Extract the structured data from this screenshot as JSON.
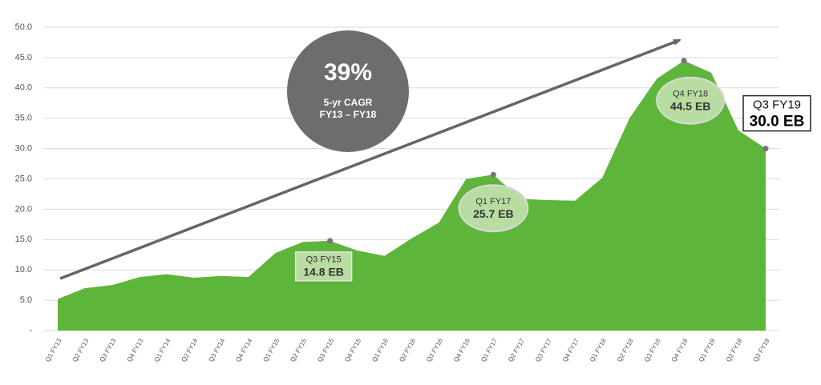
{
  "chart_data": {
    "type": "area",
    "categories": [
      "Q1 FY13",
      "Q2 FY13",
      "Q3 FY13",
      "Q4 FY13",
      "Q1 FY14",
      "Q2 FY14",
      "Q3 FY14",
      "Q4 FY14",
      "Q1 FY15",
      "Q2 FY15",
      "Q3 FY15",
      "Q4 FY15",
      "Q1 FY16",
      "Q2 FY16",
      "Q3 FY16",
      "Q4 FY16",
      "Q1 FY17",
      "Q2 FY17",
      "Q3 FY17",
      "Q4 FY17",
      "Q1 FY18",
      "Q2 FY18",
      "Q3 FY18",
      "Q4 FY18",
      "Q1 FY19",
      "Q2 FY19",
      "Q3 FY19"
    ],
    "values": [
      5.2,
      7.0,
      7.5,
      8.8,
      9.3,
      8.7,
      9.0,
      8.8,
      12.8,
      14.6,
      14.8,
      13.2,
      12.3,
      15.2,
      17.8,
      25.0,
      25.7,
      21.7,
      21.5,
      21.4,
      25.2,
      35.0,
      41.5,
      44.5,
      42.5,
      33.0,
      30.0
    ],
    "value_labels": [
      null,
      null,
      null,
      null,
      null,
      null,
      null,
      null,
      null,
      null,
      "14.8 EB",
      null,
      null,
      null,
      null,
      null,
      "25.7 EB",
      null,
      null,
      null,
      null,
      null,
      null,
      "44.5 EB",
      null,
      null,
      "30.0 EB"
    ],
    "color": "#5db53a",
    "ylim": [
      0,
      50
    ],
    "yticks": [
      {
        "value": 0,
        "label": "-"
      },
      {
        "value": 5,
        "label": "5.0"
      },
      {
        "value": 10,
        "label": "10.0"
      },
      {
        "value": 15,
        "label": "15.0"
      },
      {
        "value": 20,
        "label": "20.0"
      },
      {
        "value": 25,
        "label": "25.0"
      },
      {
        "value": 30,
        "label": "30.0"
      },
      {
        "value": 35,
        "label": "35.0"
      },
      {
        "value": 40,
        "label": "40.0"
      },
      {
        "value": 45,
        "label": "45.0"
      },
      {
        "value": 50,
        "label": "50.0"
      }
    ],
    "grid": true,
    "annotations": [
      "39%",
      "5-yr CAGR",
      "FY13 – FY18"
    ]
  }
}
